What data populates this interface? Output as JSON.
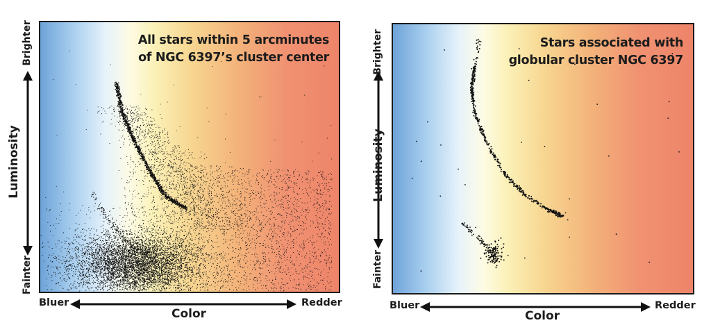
{
  "chart_data": [
    {
      "type": "scatter",
      "panel": "left",
      "title": "All stars within 5 arcminutes of NGC 6397’s cluster center",
      "title_lines": [
        "All stars within 5 arcminutes",
        "of NGC 6397’s cluster center"
      ],
      "xlabel": "Color",
      "x_left_label": "Bluer",
      "x_right_label": "Redder",
      "ylabel": "Luminosity",
      "y_top_label": "Brighter",
      "y_bottom_label": "Fainter",
      "grid": false,
      "background": "blue-to-red color gradient",
      "colors": {
        "points": "#111111",
        "blue_end": "#6ea3d8",
        "red_end": "#ee8469"
      }
    },
    {
      "type": "scatter",
      "panel": "right",
      "title": "Stars associated with globular cluster NGC 6397",
      "title_lines": [
        "Stars associated with",
        "globular cluster NGC 6397"
      ],
      "xlabel": "Color",
      "x_left_label": "Bluer",
      "x_right_label": "Redder",
      "ylabel": "Luminosity",
      "y_top_label": "Brighter",
      "y_bottom_label": "Fainter",
      "grid": false,
      "background": "blue-to-red color gradient",
      "colors": {
        "points": "#111111",
        "blue_end": "#6ea3d8",
        "red_end": "#ee8469"
      }
    }
  ]
}
